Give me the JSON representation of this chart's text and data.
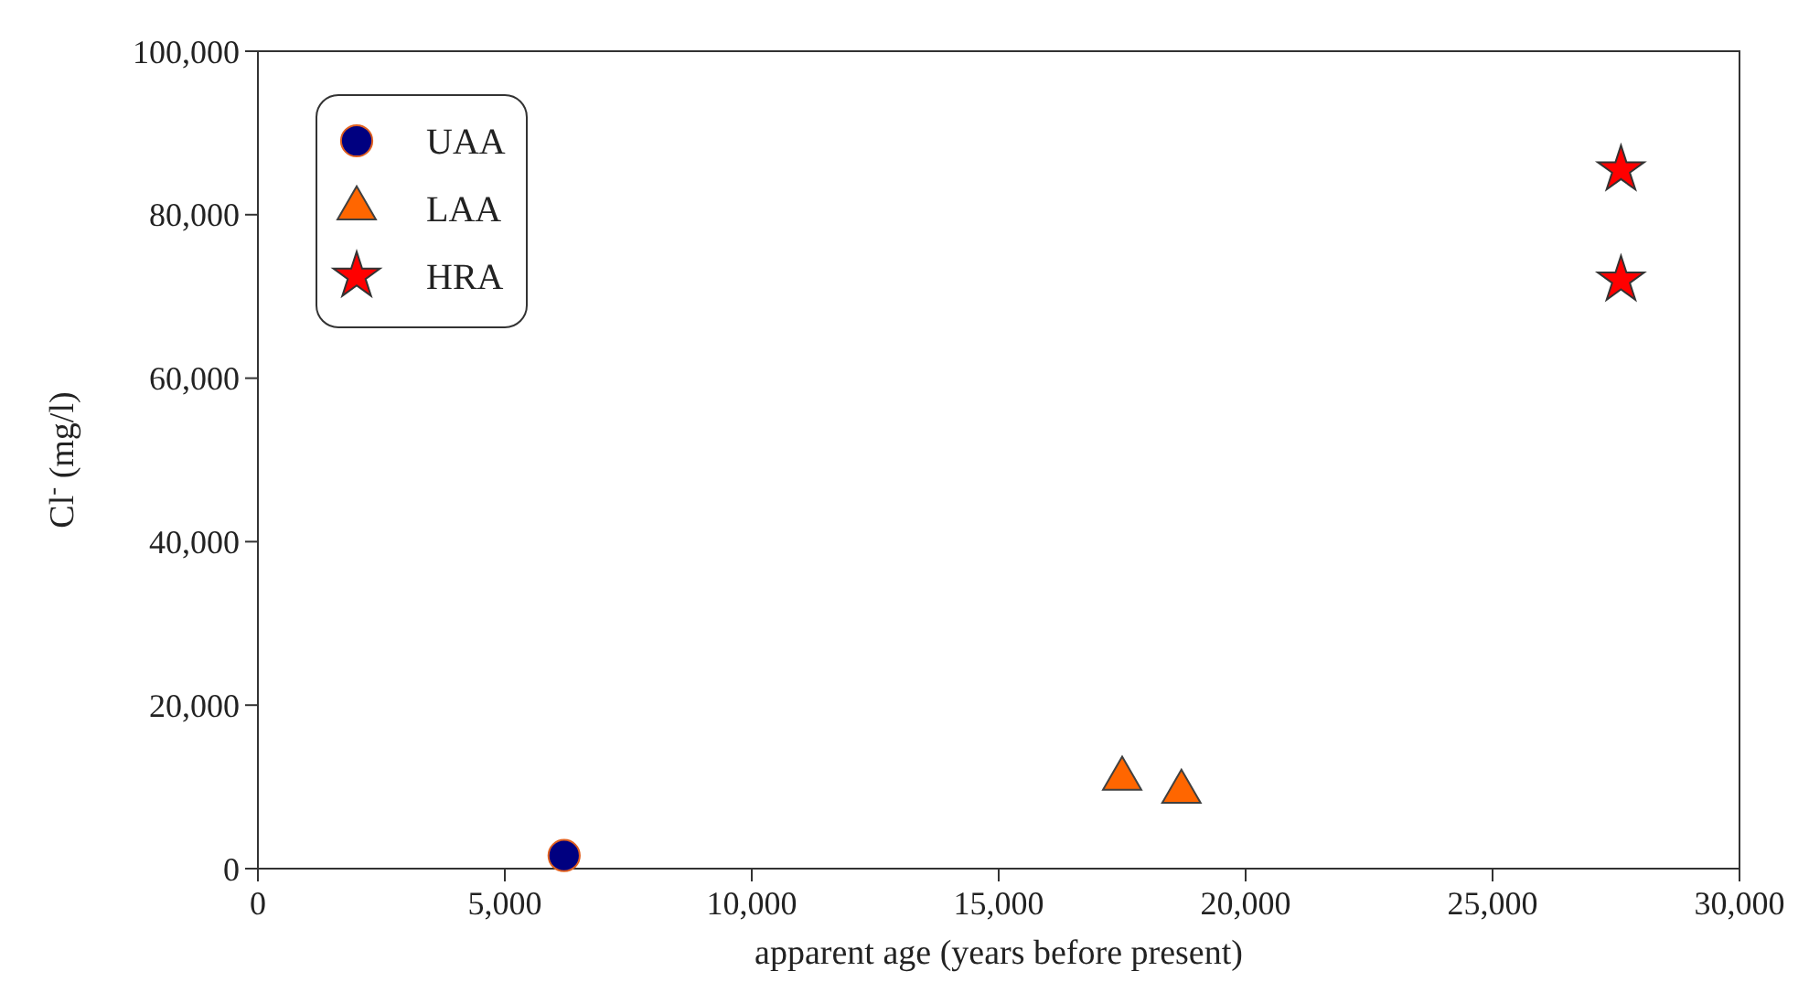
{
  "chart_data": {
    "type": "scatter",
    "xlabel": "apparent age (years before present)",
    "ylabel": "Cl$^{-}$ (mg/l)",
    "xlim": [
      0,
      30000
    ],
    "xticks": [
      {
        "value": 0,
        "label": "0"
      },
      {
        "value": 5000,
        "label": "5,000"
      },
      {
        "value": 10000,
        "label": "10,000"
      },
      {
        "value": 15000,
        "label": "15,000"
      },
      {
        "value": 20000,
        "label": "20,000"
      },
      {
        "value": 25000,
        "label": "25,000"
      },
      {
        "value": 30000,
        "label": "30,000"
      }
    ],
    "ylim": [
      0,
      100000
    ],
    "yticks": [
      {
        "value": 0,
        "label": "0"
      },
      {
        "value": 20000,
        "label": "20,000"
      },
      {
        "value": 40000,
        "label": "40,000"
      },
      {
        "value": 60000,
        "label": "60,000"
      },
      {
        "value": 80000,
        "label": "80,000"
      },
      {
        "value": 100000,
        "label": "100,000"
      }
    ],
    "grid": false,
    "legend": "top left",
    "series": [
      {
        "name": "UAA",
        "color": "#000080",
        "marker": "circle",
        "x": [
          6200
        ],
        "values": [
          1600
        ]
      },
      {
        "name": "LAA",
        "color": "#ff6600",
        "marker": "triangle",
        "x": [
          17500,
          18700
        ],
        "values": [
          11000,
          9400
        ]
      },
      {
        "name": "HRA",
        "color": "#ff0000",
        "marker": "star",
        "x": [
          27600,
          27600
        ],
        "values": [
          85500,
          72000
        ]
      }
    ]
  }
}
